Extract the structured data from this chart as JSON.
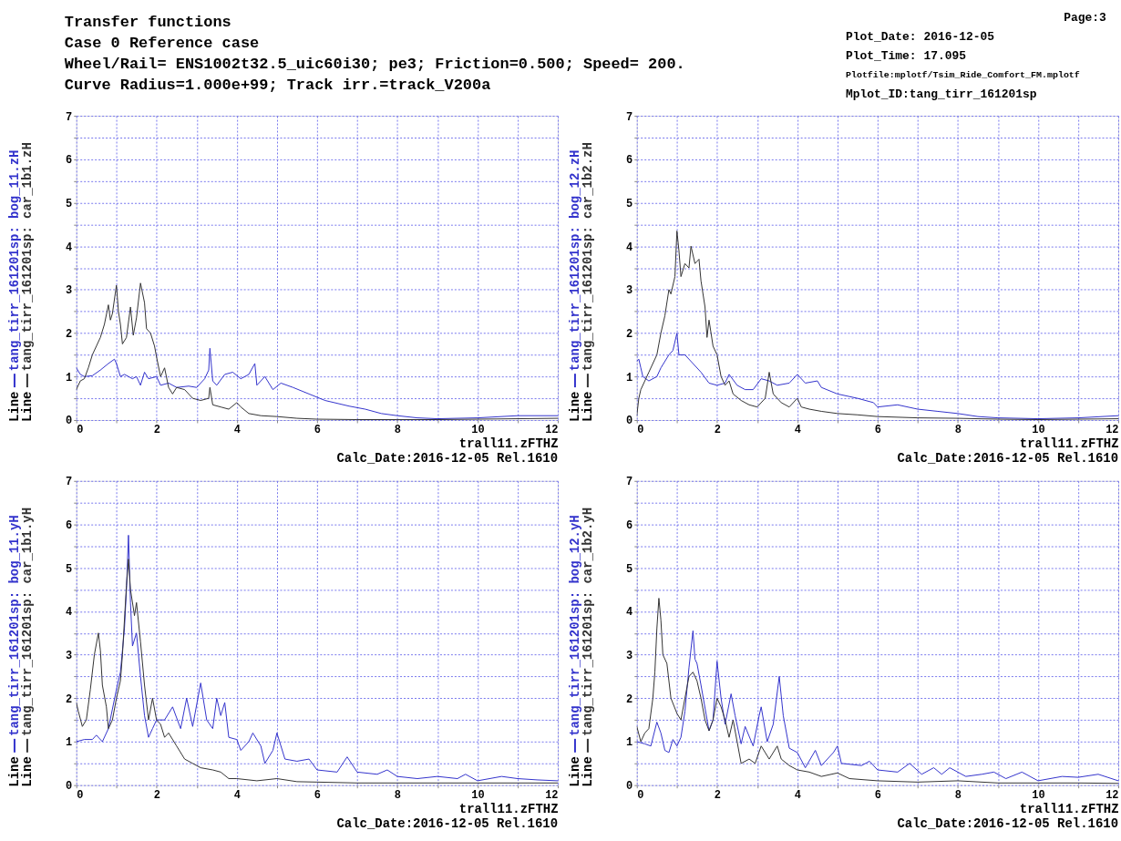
{
  "chart_data": [
    {
      "type": "other",
      "title": "Transfer functions",
      "subtitle": "Case 0  Reference case",
      "annotations": [
        "Wheel/Rail= ENS1002t32.5_uic60i30; pe3; Friction=0.500; Speed= 200.",
        "Curve Radius=1.000e+99; Track irr.=track_V200a",
        "Page:3",
        "Plot_Date: 2016-12-05",
        "Plot_Time: 17.095",
        "Plotfile:mplotf/Tsim_Ride_Comfort_FM.mplotf",
        "Mplot_ID:tang_tirr_161201sp"
      ]
    },
    {
      "type": "line",
      "xlabel": "trall11.zFTHZ",
      "legend_title": "Line",
      "legend": "left",
      "grid": true,
      "annotations": [
        "Calc_Date:2016-12-05 Rel.1610"
      ],
      "xlim": [
        0,
        12
      ],
      "ylim": [
        0,
        7
      ],
      "xticks": [
        0,
        {
          "value": 1,
          "label": null
        },
        2,
        {
          "value": 3,
          "label": null
        },
        4,
        {
          "value": 5,
          "label": null
        },
        6,
        {
          "value": 7,
          "label": null
        },
        8,
        {
          "value": 9,
          "label": null
        },
        10,
        {
          "value": 11,
          "label": null
        },
        12
      ],
      "yticks": [
        0,
        {
          "value": 0.5,
          "label": null
        },
        1,
        {
          "value": 1.5,
          "label": null
        },
        2,
        {
          "value": 2.5,
          "label": null
        },
        3,
        {
          "value": 3.5,
          "label": null
        },
        4,
        {
          "value": 4.5,
          "label": null
        },
        5,
        {
          "value": 5.5,
          "label": null
        },
        6,
        {
          "value": 6.5,
          "label": null
        },
        7
      ],
      "series": [
        {
          "name": "tang_tirr_161201sp:  bog_11.zH",
          "color": "#3333cc",
          "x": [
            0,
            0.1,
            0.2,
            0.4,
            0.6,
            0.8,
            0.95,
            1.0,
            1.1,
            1.2,
            1.4,
            1.5,
            1.6,
            1.7,
            1.8,
            2.0,
            2.1,
            2.3,
            2.5,
            2.8,
            3.0,
            3.2,
            3.3,
            3.33,
            3.4,
            3.5,
            3.7,
            3.9,
            4.1,
            4.3,
            4.45,
            4.5,
            4.7,
            4.9,
            5.1,
            5.4,
            5.8,
            6.2,
            6.8,
            7.2,
            7.6,
            8.0,
            8.5,
            9,
            10,
            11,
            12
          ],
          "values": [
            1.2,
            1.05,
            1.0,
            1.02,
            1.15,
            1.3,
            1.4,
            1.3,
            1.0,
            1.05,
            0.95,
            1.0,
            0.8,
            1.1,
            0.95,
            1.0,
            0.8,
            0.85,
            0.75,
            0.78,
            0.75,
            0.95,
            1.15,
            1.65,
            0.9,
            0.8,
            1.05,
            1.1,
            0.95,
            1.05,
            1.3,
            0.8,
            1.0,
            0.7,
            0.85,
            0.75,
            0.6,
            0.45,
            0.32,
            0.25,
            0.15,
            0.1,
            0.05,
            0.03,
            0.05,
            0.1,
            0.1
          ]
        },
        {
          "name": "tang_tirr_161201sp: car_1b1.zH",
          "color": "#333333",
          "x": [
            0,
            0.1,
            0.2,
            0.3,
            0.4,
            0.5,
            0.6,
            0.7,
            0.8,
            0.85,
            0.9,
            1.0,
            1.05,
            1.1,
            1.15,
            1.25,
            1.35,
            1.42,
            1.5,
            1.6,
            1.7,
            1.75,
            1.85,
            1.95,
            2.0,
            2.1,
            2.2,
            2.3,
            2.4,
            2.5,
            2.7,
            2.9,
            3.1,
            3.3,
            3.33,
            3.4,
            3.6,
            3.8,
            4.0,
            4.1,
            4.3,
            4.6,
            5.0,
            5.5,
            6,
            7,
            8,
            9,
            10,
            11,
            12
          ],
          "values": [
            0.7,
            0.9,
            0.95,
            1.2,
            1.5,
            1.7,
            1.9,
            2.2,
            2.65,
            2.3,
            2.45,
            3.1,
            2.5,
            2.2,
            1.75,
            1.9,
            2.6,
            1.95,
            2.35,
            3.15,
            2.7,
            2.1,
            2.0,
            1.7,
            1.45,
            1.0,
            1.2,
            0.75,
            0.6,
            0.75,
            0.7,
            0.5,
            0.45,
            0.5,
            0.75,
            0.35,
            0.3,
            0.25,
            0.4,
            0.3,
            0.15,
            0.1,
            0.08,
            0.04,
            0.02,
            0.01,
            0.01,
            0.01,
            0.02,
            0.03,
            0.04
          ]
        }
      ]
    },
    {
      "type": "line",
      "xlabel": "trall11.zFTHZ",
      "legend_title": "Line",
      "legend": "left",
      "grid": true,
      "annotations": [
        "Calc_Date:2016-12-05 Rel.1610"
      ],
      "xlim": [
        0,
        12
      ],
      "ylim": [
        0,
        7
      ],
      "xticks": [
        0,
        {
          "value": 1,
          "label": null
        },
        2,
        {
          "value": 3,
          "label": null
        },
        4,
        {
          "value": 5,
          "label": null
        },
        6,
        {
          "value": 7,
          "label": null
        },
        8,
        {
          "value": 9,
          "label": null
        },
        10,
        {
          "value": 11,
          "label": null
        },
        12
      ],
      "yticks": [
        0,
        {
          "value": 0.5,
          "label": null
        },
        1,
        {
          "value": 1.5,
          "label": null
        },
        2,
        {
          "value": 2.5,
          "label": null
        },
        3,
        {
          "value": 3.5,
          "label": null
        },
        4,
        {
          "value": 4.5,
          "label": null
        },
        5,
        {
          "value": 5.5,
          "label": null
        },
        6,
        {
          "value": 6.5,
          "label": null
        },
        7
      ],
      "series": [
        {
          "name": "tang_tirr_161201sp:  bog_12.zH",
          "color": "#3333cc",
          "x": [
            0,
            0.05,
            0.1,
            0.15,
            0.3,
            0.5,
            0.6,
            0.8,
            0.9,
            1.0,
            1.05,
            1.2,
            1.4,
            1.6,
            1.8,
            2.0,
            2.2,
            2.3,
            2.5,
            2.7,
            2.9,
            3.1,
            3.3,
            3.5,
            3.8,
            4.0,
            4.2,
            4.5,
            4.6,
            5.0,
            5.5,
            5.9,
            6.0,
            6.5,
            7.0,
            7.5,
            8.0,
            8.5,
            9,
            10,
            11,
            12
          ],
          "values": [
            1.35,
            1.4,
            1.2,
            1.0,
            0.9,
            1.0,
            1.2,
            1.5,
            1.6,
            2.0,
            1.5,
            1.5,
            1.3,
            1.1,
            0.85,
            0.8,
            0.85,
            1.05,
            0.8,
            0.7,
            0.7,
            0.95,
            0.9,
            0.8,
            0.85,
            1.05,
            0.85,
            0.9,
            0.75,
            0.6,
            0.5,
            0.4,
            0.3,
            0.35,
            0.25,
            0.2,
            0.15,
            0.08,
            0.05,
            0.03,
            0.05,
            0.1
          ]
        },
        {
          "name": "tang_tirr_161201sp: car_1b2.zH",
          "color": "#333333",
          "x": [
            0,
            0.05,
            0.1,
            0.2,
            0.3,
            0.5,
            0.6,
            0.7,
            0.8,
            0.85,
            0.95,
            1.0,
            1.05,
            1.1,
            1.2,
            1.3,
            1.35,
            1.45,
            1.55,
            1.6,
            1.7,
            1.75,
            1.8,
            1.9,
            2.0,
            2.1,
            2.2,
            2.3,
            2.4,
            2.6,
            2.8,
            3.0,
            3.2,
            3.3,
            3.4,
            3.6,
            3.8,
            4.0,
            4.1,
            4.3,
            4.6,
            5.0,
            5.5,
            6,
            7,
            8,
            9,
            10,
            11,
            12
          ],
          "values": [
            0.1,
            0.5,
            0.7,
            0.9,
            1.1,
            1.5,
            2.0,
            2.4,
            3.0,
            2.9,
            3.3,
            4.35,
            3.9,
            3.3,
            3.6,
            3.5,
            4.0,
            3.6,
            3.7,
            3.2,
            2.6,
            1.9,
            2.3,
            1.7,
            1.5,
            1.0,
            0.8,
            0.9,
            0.6,
            0.45,
            0.35,
            0.3,
            0.5,
            1.1,
            0.6,
            0.4,
            0.3,
            0.5,
            0.3,
            0.25,
            0.2,
            0.15,
            0.12,
            0.08,
            0.05,
            0.04,
            0.02,
            0.01,
            0.02,
            0.03
          ]
        }
      ]
    },
    {
      "type": "line",
      "xlabel": "trall11.zFTHZ",
      "legend_title": "Line",
      "legend": "left",
      "grid": true,
      "annotations": [
        "Calc_Date:2016-12-05 Rel.1610"
      ],
      "xlim": [
        0,
        12
      ],
      "ylim": [
        0,
        7
      ],
      "xticks": [
        0,
        {
          "value": 1,
          "label": null
        },
        2,
        {
          "value": 3,
          "label": null
        },
        4,
        {
          "value": 5,
          "label": null
        },
        6,
        {
          "value": 7,
          "label": null
        },
        8,
        {
          "value": 9,
          "label": null
        },
        10,
        {
          "value": 11,
          "label": null
        },
        12
      ],
      "yticks": [
        0,
        {
          "value": 0.5,
          "label": null
        },
        1,
        {
          "value": 1.5,
          "label": null
        },
        2,
        {
          "value": 2.5,
          "label": null
        },
        3,
        {
          "value": 3.5,
          "label": null
        },
        4,
        {
          "value": 4.5,
          "label": null
        },
        5,
        {
          "value": 5.5,
          "label": null
        },
        6,
        {
          "value": 6.5,
          "label": null
        },
        7
      ],
      "series": [
        {
          "name": "tang_tirr_161201sp:  bog_11.yH",
          "color": "#3333cc",
          "x": [
            0,
            0.2,
            0.4,
            0.5,
            0.65,
            0.8,
            1.0,
            1.1,
            1.2,
            1.25,
            1.3,
            1.35,
            1.4,
            1.5,
            1.6,
            1.7,
            1.8,
            1.9,
            2.0,
            2.2,
            2.4,
            2.6,
            2.75,
            2.9,
            3.1,
            3.25,
            3.4,
            3.5,
            3.6,
            3.7,
            3.8,
            4.0,
            4.1,
            4.3,
            4.4,
            4.6,
            4.7,
            4.9,
            5.0,
            5.2,
            5.5,
            5.8,
            6.0,
            6.5,
            6.75,
            7.0,
            7.5,
            7.75,
            8.0,
            8.5,
            9,
            9.5,
            9.7,
            10,
            10.6,
            11,
            11.5,
            12
          ],
          "values": [
            1.0,
            1.05,
            1.05,
            1.15,
            1.0,
            1.3,
            2.2,
            2.6,
            3.6,
            4.5,
            5.75,
            4.2,
            3.2,
            3.5,
            2.5,
            1.6,
            1.1,
            1.3,
            1.5,
            1.5,
            1.8,
            1.3,
            2.0,
            1.35,
            2.35,
            1.5,
            1.3,
            2.0,
            1.6,
            1.9,
            1.1,
            1.05,
            0.8,
            1.0,
            1.2,
            0.9,
            0.5,
            0.8,
            1.2,
            0.6,
            0.55,
            0.6,
            0.35,
            0.3,
            0.65,
            0.3,
            0.25,
            0.35,
            0.2,
            0.15,
            0.2,
            0.15,
            0.25,
            0.1,
            0.2,
            0.15,
            0.12,
            0.1
          ]
        },
        {
          "name": "tang_tirr_161201sp: car_1b1.yH",
          "color": "#333333",
          "x": [
            0,
            0.05,
            0.15,
            0.25,
            0.35,
            0.45,
            0.55,
            0.6,
            0.65,
            0.75,
            0.8,
            0.9,
            1.0,
            1.1,
            1.15,
            1.25,
            1.3,
            1.35,
            1.45,
            1.5,
            1.6,
            1.7,
            1.8,
            1.9,
            2.0,
            2.1,
            2.2,
            2.3,
            2.5,
            2.7,
            2.9,
            3.1,
            3.4,
            3.6,
            3.8,
            4.0,
            4.5,
            5.0,
            5.5,
            6,
            7,
            8,
            9,
            10,
            11,
            12
          ],
          "values": [
            1.9,
            1.7,
            1.35,
            1.5,
            2.2,
            3.0,
            3.5,
            3.1,
            2.3,
            1.8,
            1.3,
            1.5,
            2.0,
            2.4,
            3.0,
            4.6,
            5.2,
            4.5,
            3.9,
            4.2,
            3.3,
            2.3,
            1.5,
            2.0,
            1.5,
            1.4,
            1.1,
            1.2,
            0.9,
            0.6,
            0.5,
            0.4,
            0.35,
            0.3,
            0.15,
            0.15,
            0.1,
            0.15,
            0.08,
            0.07,
            0.05,
            0.05,
            0.05,
            0.05,
            0.05,
            0.05
          ]
        }
      ]
    },
    {
      "type": "line",
      "xlabel": "trall11.zFTHZ",
      "legend_title": "Line",
      "legend": "left",
      "grid": true,
      "annotations": [
        "Calc_Date:2016-12-05 Rel.1610"
      ],
      "xlim": [
        0,
        12
      ],
      "ylim": [
        0,
        7
      ],
      "xticks": [
        0,
        {
          "value": 1,
          "label": null
        },
        2,
        {
          "value": 3,
          "label": null
        },
        4,
        {
          "value": 5,
          "label": null
        },
        6,
        {
          "value": 7,
          "label": null
        },
        8,
        {
          "value": 9,
          "label": null
        },
        10,
        {
          "value": 11,
          "label": null
        },
        12
      ],
      "yticks": [
        0,
        {
          "value": 0.5,
          "label": null
        },
        1,
        {
          "value": 1.5,
          "label": null
        },
        2,
        {
          "value": 2.5,
          "label": null
        },
        3,
        {
          "value": 3.5,
          "label": null
        },
        4,
        {
          "value": 4.5,
          "label": null
        },
        5,
        {
          "value": 5.5,
          "label": null
        },
        6,
        {
          "value": 6.5,
          "label": null
        },
        7
      ],
      "series": [
        {
          "name": "tang_tirr_161201sp:  bog_12.yH",
          "color": "#3333cc",
          "x": [
            0,
            0.2,
            0.35,
            0.5,
            0.6,
            0.7,
            0.8,
            0.9,
            1.0,
            1.1,
            1.2,
            1.3,
            1.4,
            1.45,
            1.5,
            1.6,
            1.8,
            1.9,
            2.0,
            2.1,
            2.2,
            2.35,
            2.45,
            2.6,
            2.7,
            2.9,
            3.05,
            3.1,
            3.25,
            3.4,
            3.55,
            3.65,
            3.8,
            4.0,
            4.2,
            4.45,
            4.6,
            4.9,
            5.0,
            5.1,
            5.6,
            5.8,
            6,
            6.5,
            6.8,
            7.1,
            7.4,
            7.6,
            7.8,
            8.2,
            8.6,
            8.9,
            9.2,
            9.6,
            10,
            10.6,
            11,
            11.5,
            12
          ],
          "values": [
            1.0,
            0.95,
            0.9,
            1.45,
            1.2,
            0.8,
            0.75,
            1.05,
            0.9,
            1.1,
            1.7,
            2.7,
            3.55,
            2.9,
            2.8,
            2.3,
            1.25,
            1.5,
            2.85,
            2.0,
            1.4,
            2.1,
            1.6,
            0.95,
            1.35,
            0.9,
            1.6,
            1.8,
            1.0,
            1.4,
            2.5,
            1.6,
            0.85,
            0.75,
            0.4,
            0.8,
            0.45,
            0.75,
            0.9,
            0.5,
            0.45,
            0.55,
            0.35,
            0.3,
            0.5,
            0.25,
            0.4,
            0.25,
            0.4,
            0.2,
            0.25,
            0.3,
            0.15,
            0.3,
            0.1,
            0.2,
            0.18,
            0.25,
            0.1
          ]
        },
        {
          "name": "tang_tirr_161201sp: car_1b2.yH",
          "color": "#333333",
          "x": [
            0,
            0.1,
            0.2,
            0.3,
            0.4,
            0.45,
            0.5,
            0.55,
            0.6,
            0.65,
            0.75,
            0.85,
            1.0,
            1.1,
            1.2,
            1.3,
            1.4,
            1.5,
            1.6,
            1.7,
            1.8,
            1.9,
            2.0,
            2.1,
            2.2,
            2.3,
            2.4,
            2.5,
            2.6,
            2.8,
            2.95,
            3.1,
            3.3,
            3.5,
            3.6,
            3.8,
            4.0,
            4.3,
            4.6,
            5.0,
            5.3,
            6,
            7,
            8,
            9,
            10,
            11,
            12
          ],
          "values": [
            1.35,
            1.0,
            1.2,
            1.3,
            2.0,
            2.6,
            3.6,
            4.3,
            3.8,
            3.0,
            2.8,
            2.0,
            1.65,
            1.5,
            2.0,
            2.5,
            2.6,
            2.4,
            2.0,
            1.5,
            1.25,
            1.5,
            2.0,
            1.8,
            1.5,
            1.1,
            1.5,
            1.0,
            0.5,
            0.6,
            0.5,
            0.9,
            0.6,
            0.9,
            0.6,
            0.45,
            0.35,
            0.3,
            0.2,
            0.28,
            0.15,
            0.1,
            0.07,
            0.1,
            0.05,
            0.05,
            0.05,
            0.04
          ]
        }
      ]
    }
  ]
}
